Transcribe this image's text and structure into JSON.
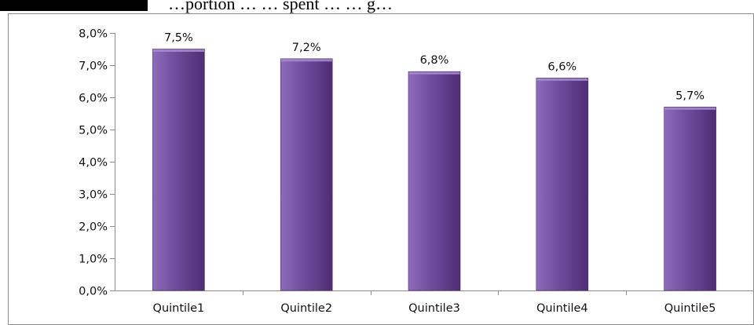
{
  "caption": {
    "text": "…portion … … spent … … g…"
  },
  "chart_data": {
    "type": "bar",
    "title": "",
    "xlabel": "",
    "ylabel": "",
    "categories": [
      "Quintile1",
      "Quintile2",
      "Quintile3",
      "Quintile4",
      "Quintile5"
    ],
    "values": [
      7.5,
      7.2,
      6.8,
      6.6,
      5.7
    ],
    "value_labels": [
      "7,5%",
      "7,2%",
      "6,8%",
      "6,6%",
      "5,7%"
    ],
    "ylim": [
      0,
      8
    ],
    "yticks": [
      0,
      1,
      2,
      3,
      4,
      5,
      6,
      7,
      8
    ],
    "ytick_labels": [
      "0,0%",
      "1,0%",
      "2,0%",
      "3,0%",
      "4,0%",
      "5,0%",
      "6,0%",
      "7,0%",
      "8,0%"
    ],
    "grid": false,
    "legend": "none",
    "colors": {
      "bar_light": "#8e6cbc",
      "bar_mid": "#6e4c9c",
      "bar_dark": "#4e2d74",
      "bar_top": "#a48ad0",
      "axis": "#8c8c8c",
      "frame": "#8c8c8c"
    }
  }
}
